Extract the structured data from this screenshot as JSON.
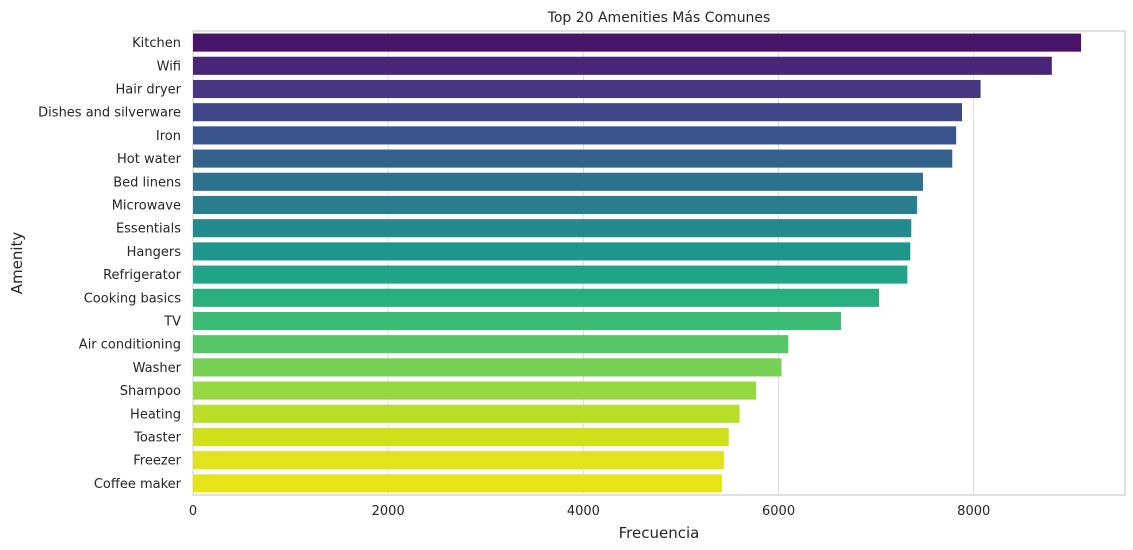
{
  "chart_data": {
    "type": "bar",
    "orientation": "horizontal",
    "title": "Top 20 Amenities Más Comunes",
    "xlabel": "Frecuencia",
    "ylabel": "Amenity",
    "xlim": [
      0,
      9550
    ],
    "xticks": [
      0,
      2000,
      4000,
      6000,
      8000
    ],
    "grid": true,
    "categories": [
      "Kitchen",
      "Wifi",
      "Hair dryer",
      "Dishes and silverware",
      "Iron",
      "Hot water",
      "Bed linens",
      "Microwave",
      "Essentials",
      "Hangers",
      "Refrigerator",
      "Cooking basics",
      "TV",
      "Air conditioning",
      "Washer",
      "Shampoo",
      "Heating",
      "Toaster",
      "Freezer",
      "Coffee maker"
    ],
    "values": [
      9100,
      8800,
      8070,
      7880,
      7820,
      7780,
      7480,
      7420,
      7360,
      7350,
      7320,
      7030,
      6640,
      6100,
      6030,
      5770,
      5600,
      5490,
      5440,
      5420
    ],
    "colors": [
      "#481467",
      "#482576",
      "#453781",
      "#3f4788",
      "#39558c",
      "#33638d",
      "#2d718e",
      "#287d8e",
      "#238a8d",
      "#1f968b",
      "#20a386",
      "#29af7f",
      "#3cbc75",
      "#56c667",
      "#75d054",
      "#95d840",
      "#b8de29",
      "#d0e11c",
      "#e1e31d",
      "#e6e519"
    ],
    "palette_note": "viridis"
  }
}
